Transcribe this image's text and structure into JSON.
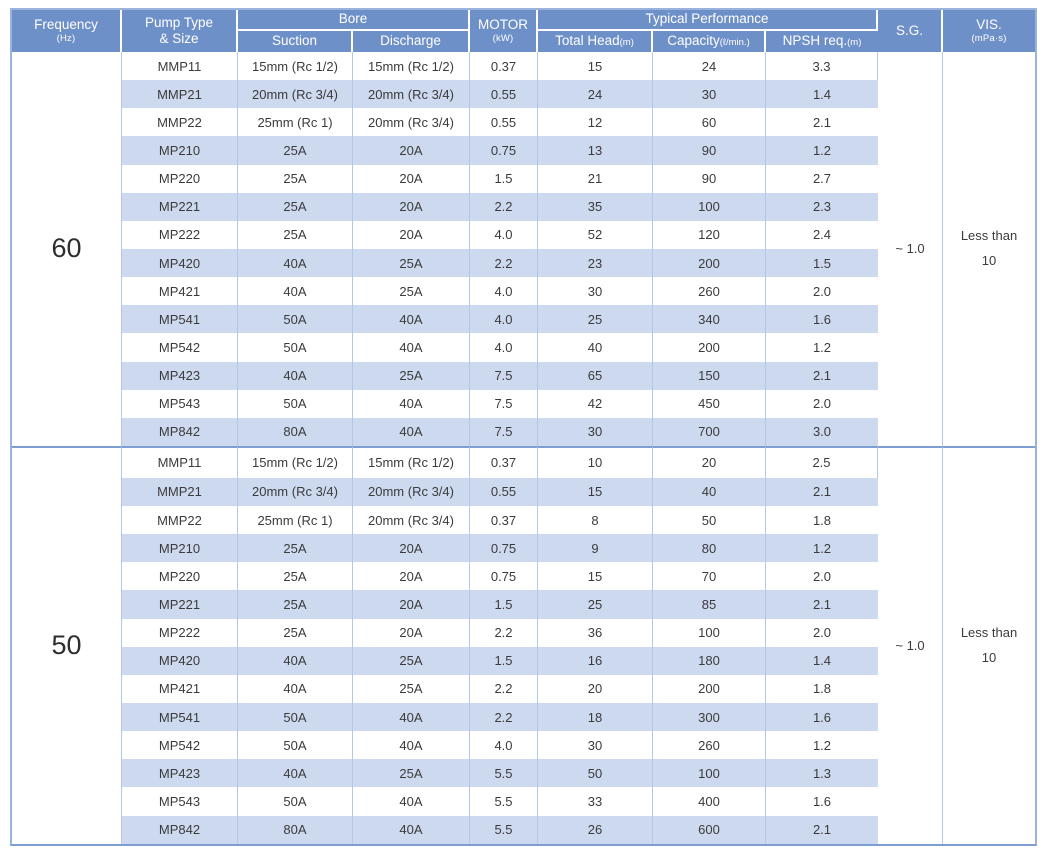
{
  "colors": {
    "header_bg": "#6E90C8",
    "header_text": "#FFFFFF",
    "row_stripe": "#CDD9EF",
    "cell_border": "#B3C7E8",
    "outer_border": "#9AB3DC",
    "section_divider": "#7E9DD1",
    "body_text": "#3B3B3B"
  },
  "header": {
    "frequency": {
      "label": "Frequency",
      "unit": "(Hz)"
    },
    "pump_type": {
      "line1": "Pump Type",
      "line2": "& Size"
    },
    "bore": {
      "label": "Bore",
      "suction": "Suction",
      "discharge": "Discharge"
    },
    "motor": {
      "label": "MOTOR",
      "unit": "(kW)"
    },
    "performance": {
      "label": "Typical Performance",
      "total_head": "Total Head",
      "total_head_unit": "(m)",
      "capacity": "Capacity",
      "capacity_unit": "(ℓ/min.)",
      "npsh": "NPSH req.",
      "npsh_unit": "(m)"
    },
    "sg": "S.G.",
    "vis": {
      "label": "VIS.",
      "unit": "(mPa·s)"
    }
  },
  "chart_data": {
    "type": "table",
    "columns": [
      "Frequency (Hz)",
      "Pump Type & Size",
      "Bore Suction",
      "Bore Discharge",
      "MOTOR (kW)",
      "Total Head (m)",
      "Capacity (l/min.)",
      "NPSH req. (m)",
      "S.G.",
      "VIS. (mPa·s)"
    ],
    "sections": [
      {
        "frequency": "60",
        "sg": "~ 1.0",
        "vis_line1": "Less than",
        "vis_line2": "10",
        "rows": [
          [
            "MMP11",
            "15mm (Rc 1/2)",
            "15mm (Rc 1/2)",
            "0.37",
            "15",
            "24",
            "3.3"
          ],
          [
            "MMP21",
            "20mm (Rc 3/4)",
            "20mm (Rc 3/4)",
            "0.55",
            "24",
            "30",
            "1.4"
          ],
          [
            "MMP22",
            "25mm (Rc 1)",
            "20mm (Rc 3/4)",
            "0.55",
            "12",
            "60",
            "2.1"
          ],
          [
            "MP210",
            "25A",
            "20A",
            "0.75",
            "13",
            "90",
            "1.2"
          ],
          [
            "MP220",
            "25A",
            "20A",
            "1.5",
            "21",
            "90",
            "2.7"
          ],
          [
            "MP221",
            "25A",
            "20A",
            "2.2",
            "35",
            "100",
            "2.3"
          ],
          [
            "MP222",
            "25A",
            "20A",
            "4.0",
            "52",
            "120",
            "2.4"
          ],
          [
            "MP420",
            "40A",
            "25A",
            "2.2",
            "23",
            "200",
            "1.5"
          ],
          [
            "MP421",
            "40A",
            "25A",
            "4.0",
            "30",
            "260",
            "2.0"
          ],
          [
            "MP541",
            "50A",
            "40A",
            "4.0",
            "25",
            "340",
            "1.6"
          ],
          [
            "MP542",
            "50A",
            "40A",
            "4.0",
            "40",
            "200",
            "1.2"
          ],
          [
            "MP423",
            "40A",
            "25A",
            "7.5",
            "65",
            "150",
            "2.1"
          ],
          [
            "MP543",
            "50A",
            "40A",
            "7.5",
            "42",
            "450",
            "2.0"
          ],
          [
            "MP842",
            "80A",
            "40A",
            "7.5",
            "30",
            "700",
            "3.0"
          ]
        ]
      },
      {
        "frequency": "50",
        "sg": "~ 1.0",
        "vis_line1": "Less than",
        "vis_line2": "10",
        "rows": [
          [
            "MMP11",
            "15mm (Rc 1/2)",
            "15mm (Rc 1/2)",
            "0.37",
            "10",
            "20",
            "2.5"
          ],
          [
            "MMP21",
            "20mm (Rc 3/4)",
            "20mm (Rc 3/4)",
            "0.55",
            "15",
            "40",
            "2.1"
          ],
          [
            "MMP22",
            "25mm (Rc 1)",
            "20mm (Rc 3/4)",
            "0.37",
            "8",
            "50",
            "1.8"
          ],
          [
            "MP210",
            "25A",
            "20A",
            "0.75",
            "9",
            "80",
            "1.2"
          ],
          [
            "MP220",
            "25A",
            "20A",
            "0.75",
            "15",
            "70",
            "2.0"
          ],
          [
            "MP221",
            "25A",
            "20A",
            "1.5",
            "25",
            "85",
            "2.1"
          ],
          [
            "MP222",
            "25A",
            "20A",
            "2.2",
            "36",
            "100",
            "2.0"
          ],
          [
            "MP420",
            "40A",
            "25A",
            "1.5",
            "16",
            "180",
            "1.4"
          ],
          [
            "MP421",
            "40A",
            "25A",
            "2.2",
            "20",
            "200",
            "1.8"
          ],
          [
            "MP541",
            "50A",
            "40A",
            "2.2",
            "18",
            "300",
            "1.6"
          ],
          [
            "MP542",
            "50A",
            "40A",
            "4.0",
            "30",
            "260",
            "1.2"
          ],
          [
            "MP423",
            "40A",
            "25A",
            "5.5",
            "50",
            "100",
            "1.3"
          ],
          [
            "MP543",
            "50A",
            "40A",
            "5.5",
            "33",
            "400",
            "1.6"
          ],
          [
            "MP842",
            "80A",
            "40A",
            "5.5",
            "26",
            "600",
            "2.1"
          ]
        ]
      }
    ]
  }
}
